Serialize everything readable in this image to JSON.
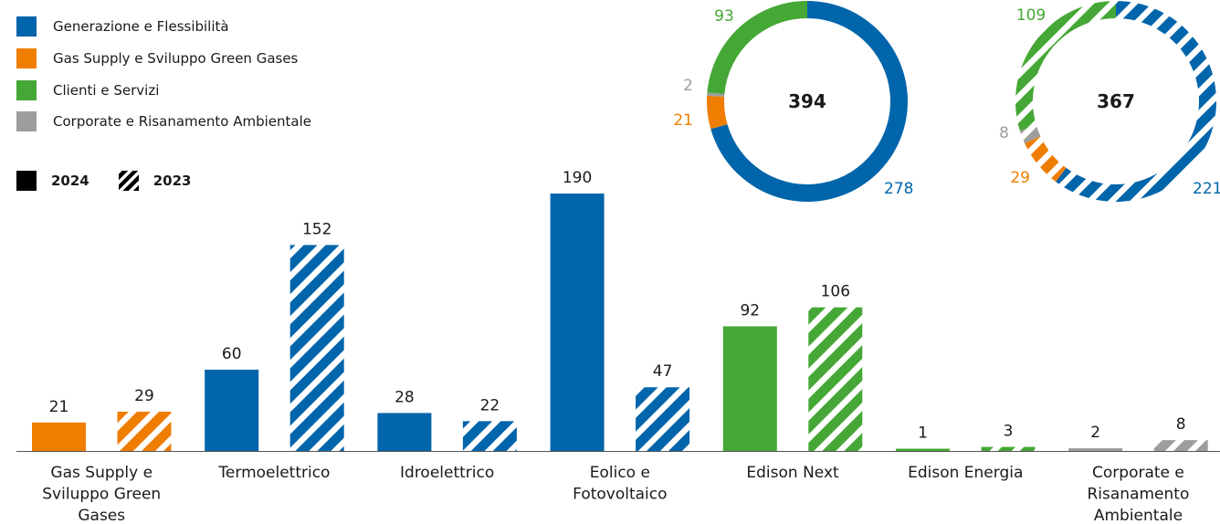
{
  "legend": {
    "segments": [
      {
        "label": "Generazione e Flessibilità",
        "color": "#0065AA"
      },
      {
        "label": "Gas Supply e Sviluppo Green Gases",
        "color": "#EF7D00"
      },
      {
        "label": "Clienti e Servizi",
        "color": "#45A735"
      },
      {
        "label": "Corporate e Risanamento Ambientale",
        "color": "#9D9D9C"
      }
    ],
    "years": [
      {
        "label": "2024",
        "style": "solid"
      },
      {
        "label": "2023",
        "style": "hatched"
      }
    ]
  },
  "chart_data": [
    {
      "type": "bar",
      "categories": [
        "Gas Supply e Sviluppo Green Gases",
        "Termoelettrico",
        "Idroelettrico",
        "Eolico e Fotovoltaico",
        "Edison Next",
        "Edison Energia",
        "Corporate e Risanamento Ambientale"
      ],
      "category_lines": [
        [
          "Gas Supply e",
          "Sviluppo Green",
          "Gases"
        ],
        [
          "Termoelettrico"
        ],
        [
          "Idroelettrico"
        ],
        [
          "Eolico e",
          "Fotovoltaico"
        ],
        [
          "Edison Next"
        ],
        [
          "Edison Energia"
        ],
        [
          "Corporate e",
          "Risanamento",
          "Ambientale"
        ]
      ],
      "category_colors": [
        "#EF7D00",
        "#0065AA",
        "#0065AA",
        "#0065AA",
        "#45A735",
        "#45A735",
        "#9D9D9C"
      ],
      "series": [
        {
          "name": "2024",
          "style": "solid",
          "values": [
            21,
            60,
            28,
            190,
            92,
            1,
            2
          ]
        },
        {
          "name": "2023",
          "style": "hatched",
          "values": [
            29,
            152,
            22,
            47,
            106,
            3,
            8
          ]
        }
      ],
      "ylim": [
        0,
        190
      ],
      "grid": false
    },
    {
      "type": "pie",
      "variant": "donut",
      "series_name": "2024",
      "style": "solid",
      "total": "394",
      "labels": [
        "Generazione e Flessibilità",
        "Gas Supply e Sviluppo Green Gases",
        "Corporate e Risanamento Ambientale",
        "Clienti e Servizi"
      ],
      "values": [
        278,
        21,
        2,
        93
      ],
      "colors": [
        "#0065AA",
        "#EF7D00",
        "#9D9D9C",
        "#45A735"
      ]
    },
    {
      "type": "pie",
      "variant": "donut",
      "series_name": "2023",
      "style": "hatched",
      "total": "367",
      "labels": [
        "Generazione e Flessibilità",
        "Gas Supply e Sviluppo Green Gases",
        "Corporate e Risanamento Ambientale",
        "Clienti e Servizi"
      ],
      "values": [
        221,
        29,
        8,
        109
      ],
      "colors": [
        "#0065AA",
        "#EF7D00",
        "#9D9D9C",
        "#45A735"
      ]
    }
  ]
}
